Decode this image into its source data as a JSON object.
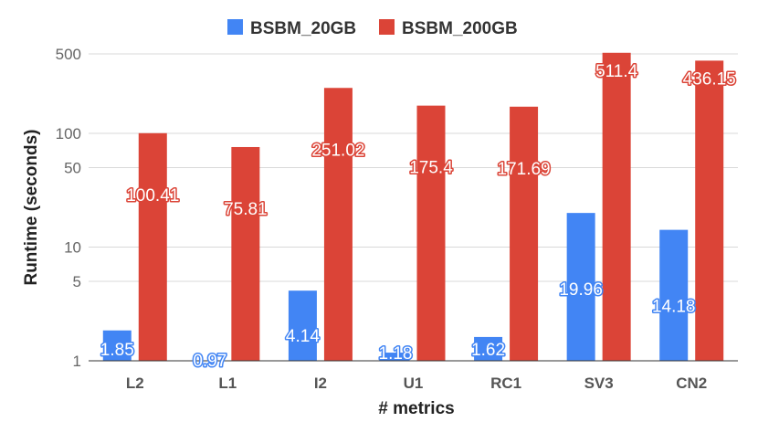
{
  "chart_data": {
    "type": "bar",
    "xlabel": "# metrics",
    "ylabel": "Runtime (seconds)",
    "y_scale": "log",
    "ylim": [
      1,
      500
    ],
    "yticks": [
      "1",
      "5",
      "10",
      "50",
      "100",
      "500"
    ],
    "ytick_values": [
      1,
      5,
      10,
      50,
      100,
      500
    ],
    "grid": true,
    "legend_position": "top",
    "categories": [
      "L2",
      "L1",
      "I2",
      "U1",
      "RC1",
      "SV3",
      "CN2"
    ],
    "series": [
      {
        "name": "BSBM_20GB",
        "color": "#4285f4",
        "values": [
          1.85,
          0.97,
          4.14,
          1.18,
          1.62,
          19.96,
          14.18
        ],
        "labels": [
          "1.85",
          "0.97",
          "4.14",
          "1.18",
          "1.62",
          "19.96",
          "14.18"
        ]
      },
      {
        "name": "BSBM_200GB",
        "color": "#db4437",
        "values": [
          100.41,
          75.81,
          251.02,
          175.4,
          171.69,
          511.4,
          436.15
        ],
        "labels": [
          "100.41",
          "75.81",
          "251.02",
          "175.4",
          "171.69",
          "511.4",
          "436.15"
        ]
      }
    ]
  }
}
